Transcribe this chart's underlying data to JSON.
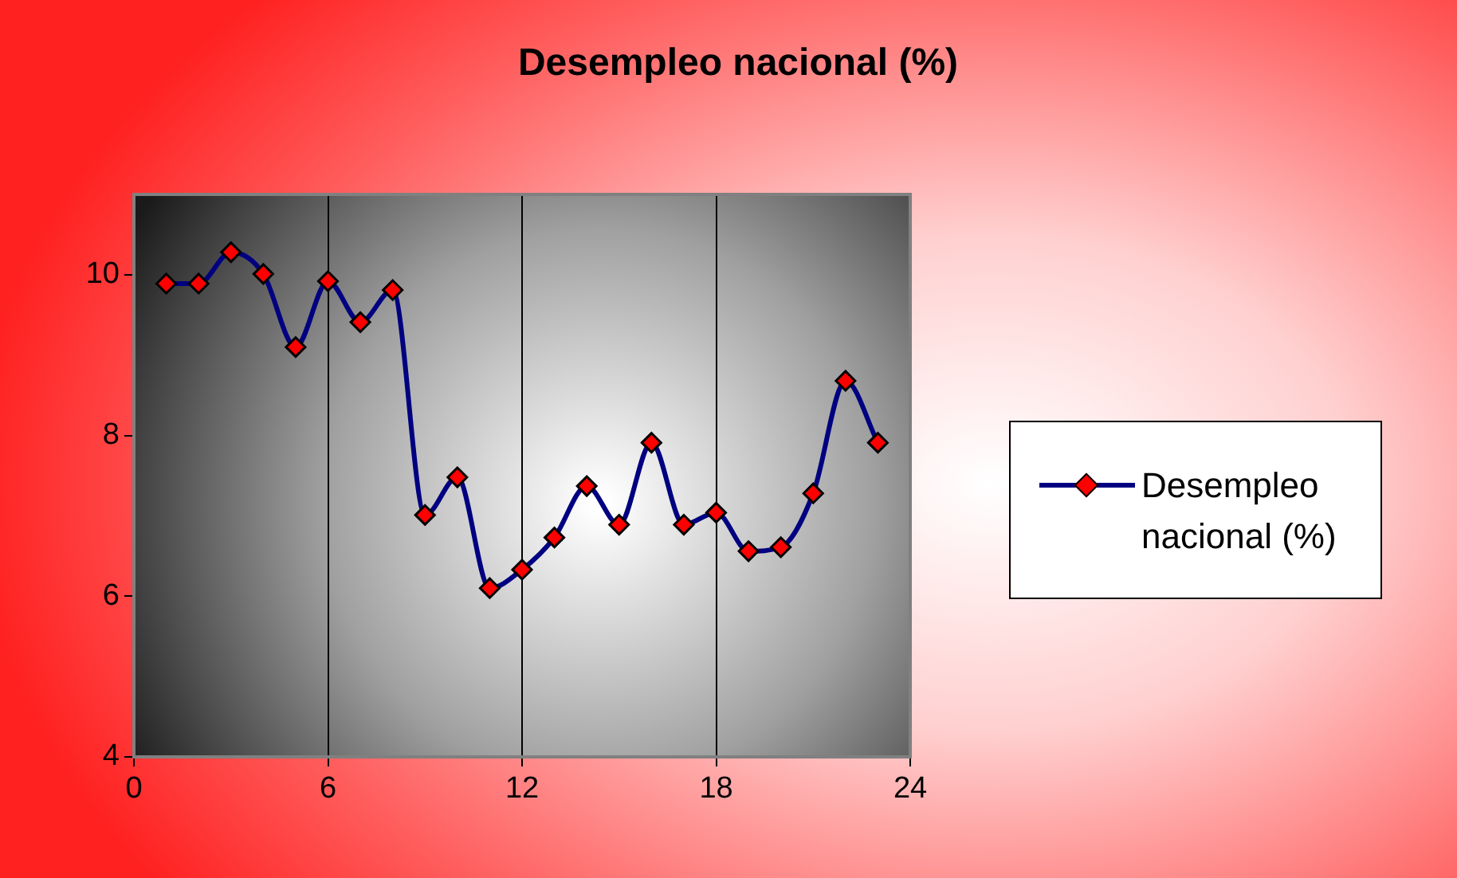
{
  "chart_data": {
    "type": "line",
    "title": "Desempleo nacional (%)",
    "x": [
      1,
      2,
      3,
      4,
      5,
      6,
      7,
      8,
      9,
      10,
      11,
      12,
      13,
      14,
      15,
      16,
      17,
      18,
      19,
      20,
      21,
      22,
      23
    ],
    "series": [
      {
        "name": "Desempleo nacional (%)",
        "color": "#000080",
        "values": [
          9.89,
          9.89,
          10.28,
          10.01,
          9.1,
          9.92,
          9.41,
          9.81,
          7.01,
          7.48,
          6.1,
          6.33,
          6.73,
          7.37,
          6.89,
          7.91,
          6.89,
          7.04,
          6.56,
          6.61,
          7.28,
          8.68,
          7.91
        ]
      }
    ],
    "xlim": [
      0,
      24
    ],
    "xticks": [
      0,
      6,
      12,
      18,
      24
    ],
    "ylim": [
      4,
      11
    ],
    "yticks": [
      4,
      6,
      8,
      10
    ],
    "grid": "x",
    "legend": "right",
    "marker": "diamond",
    "line_style": "solid"
  }
}
